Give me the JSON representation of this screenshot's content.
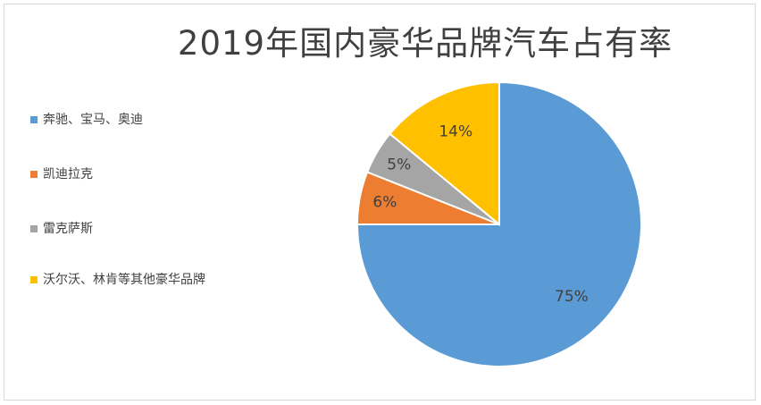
{
  "chart_data": {
    "type": "pie",
    "title": "2019年国内豪华品牌汽车占有率",
    "categories": [
      "奔驰、宝马、奥迪",
      "凯迪拉克",
      "雷克萨斯",
      "沃尔沃、林肯等其他豪华品牌"
    ],
    "values": [
      75,
      6,
      5,
      14
    ],
    "value_labels": [
      "75%",
      "6%",
      "5%",
      "14%"
    ],
    "colors": [
      "#5b9bd5",
      "#ed7d31",
      "#a5a5a5",
      "#ffc000"
    ],
    "legend_position": "left"
  }
}
